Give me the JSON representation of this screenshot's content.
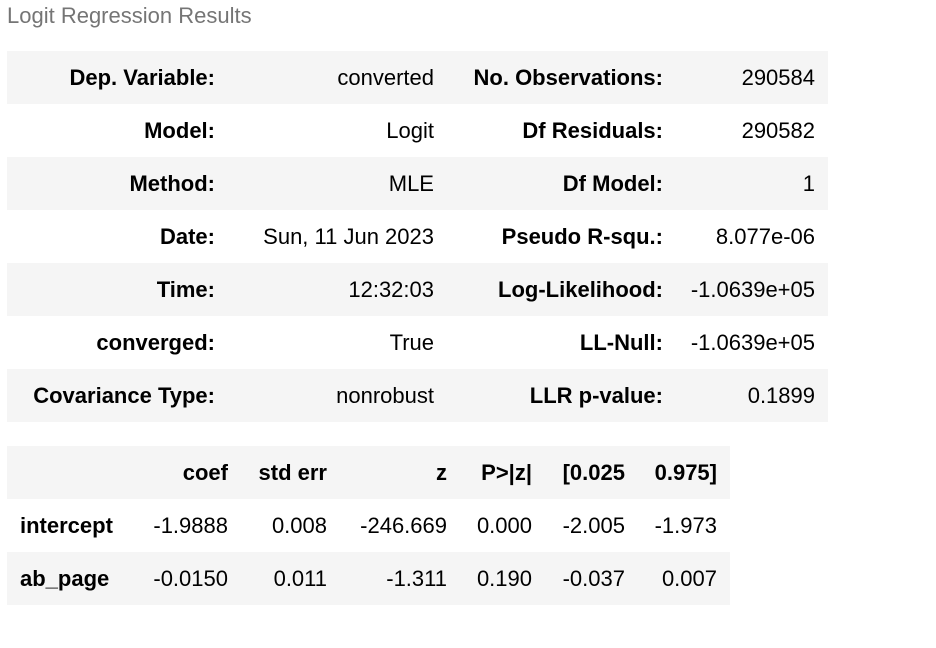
{
  "caption": "Logit Regression Results",
  "summary": {
    "rows": [
      {
        "l_label": "Dep. Variable:",
        "l_value": "converted",
        "r_label": "No. Observations:",
        "r_value": "290584"
      },
      {
        "l_label": "Model:",
        "l_value": "Logit",
        "r_label": "Df Residuals:",
        "r_value": "290582"
      },
      {
        "l_label": "Method:",
        "l_value": "MLE",
        "r_label": "Df Model:",
        "r_value": "1"
      },
      {
        "l_label": "Date:",
        "l_value": "Sun, 11 Jun 2023",
        "r_label": "Pseudo R-squ.:",
        "r_value": "8.077e-06"
      },
      {
        "l_label": "Time:",
        "l_value": "12:32:03",
        "r_label": "Log-Likelihood:",
        "r_value": "-1.0639e+05"
      },
      {
        "l_label": "converged:",
        "l_value": "True",
        "r_label": "LL-Null:",
        "r_value": "-1.0639e+05"
      },
      {
        "l_label": "Covariance Type:",
        "l_value": "nonrobust",
        "r_label": "LLR p-value:",
        "r_value": "0.1899"
      }
    ]
  },
  "coefficients": {
    "headers": [
      "",
      "coef",
      "std err",
      "z",
      "P>|z|",
      "[0.025",
      "0.975]"
    ],
    "rows": [
      {
        "name": "intercept",
        "values": [
          "-1.9888",
          "0.008",
          "-246.669",
          "0.000",
          "-2.005",
          "-1.973"
        ]
      },
      {
        "name": "ab_page",
        "values": [
          "-0.0150",
          "0.011",
          "-1.311",
          "0.190",
          "-0.037",
          "0.007"
        ]
      }
    ]
  }
}
